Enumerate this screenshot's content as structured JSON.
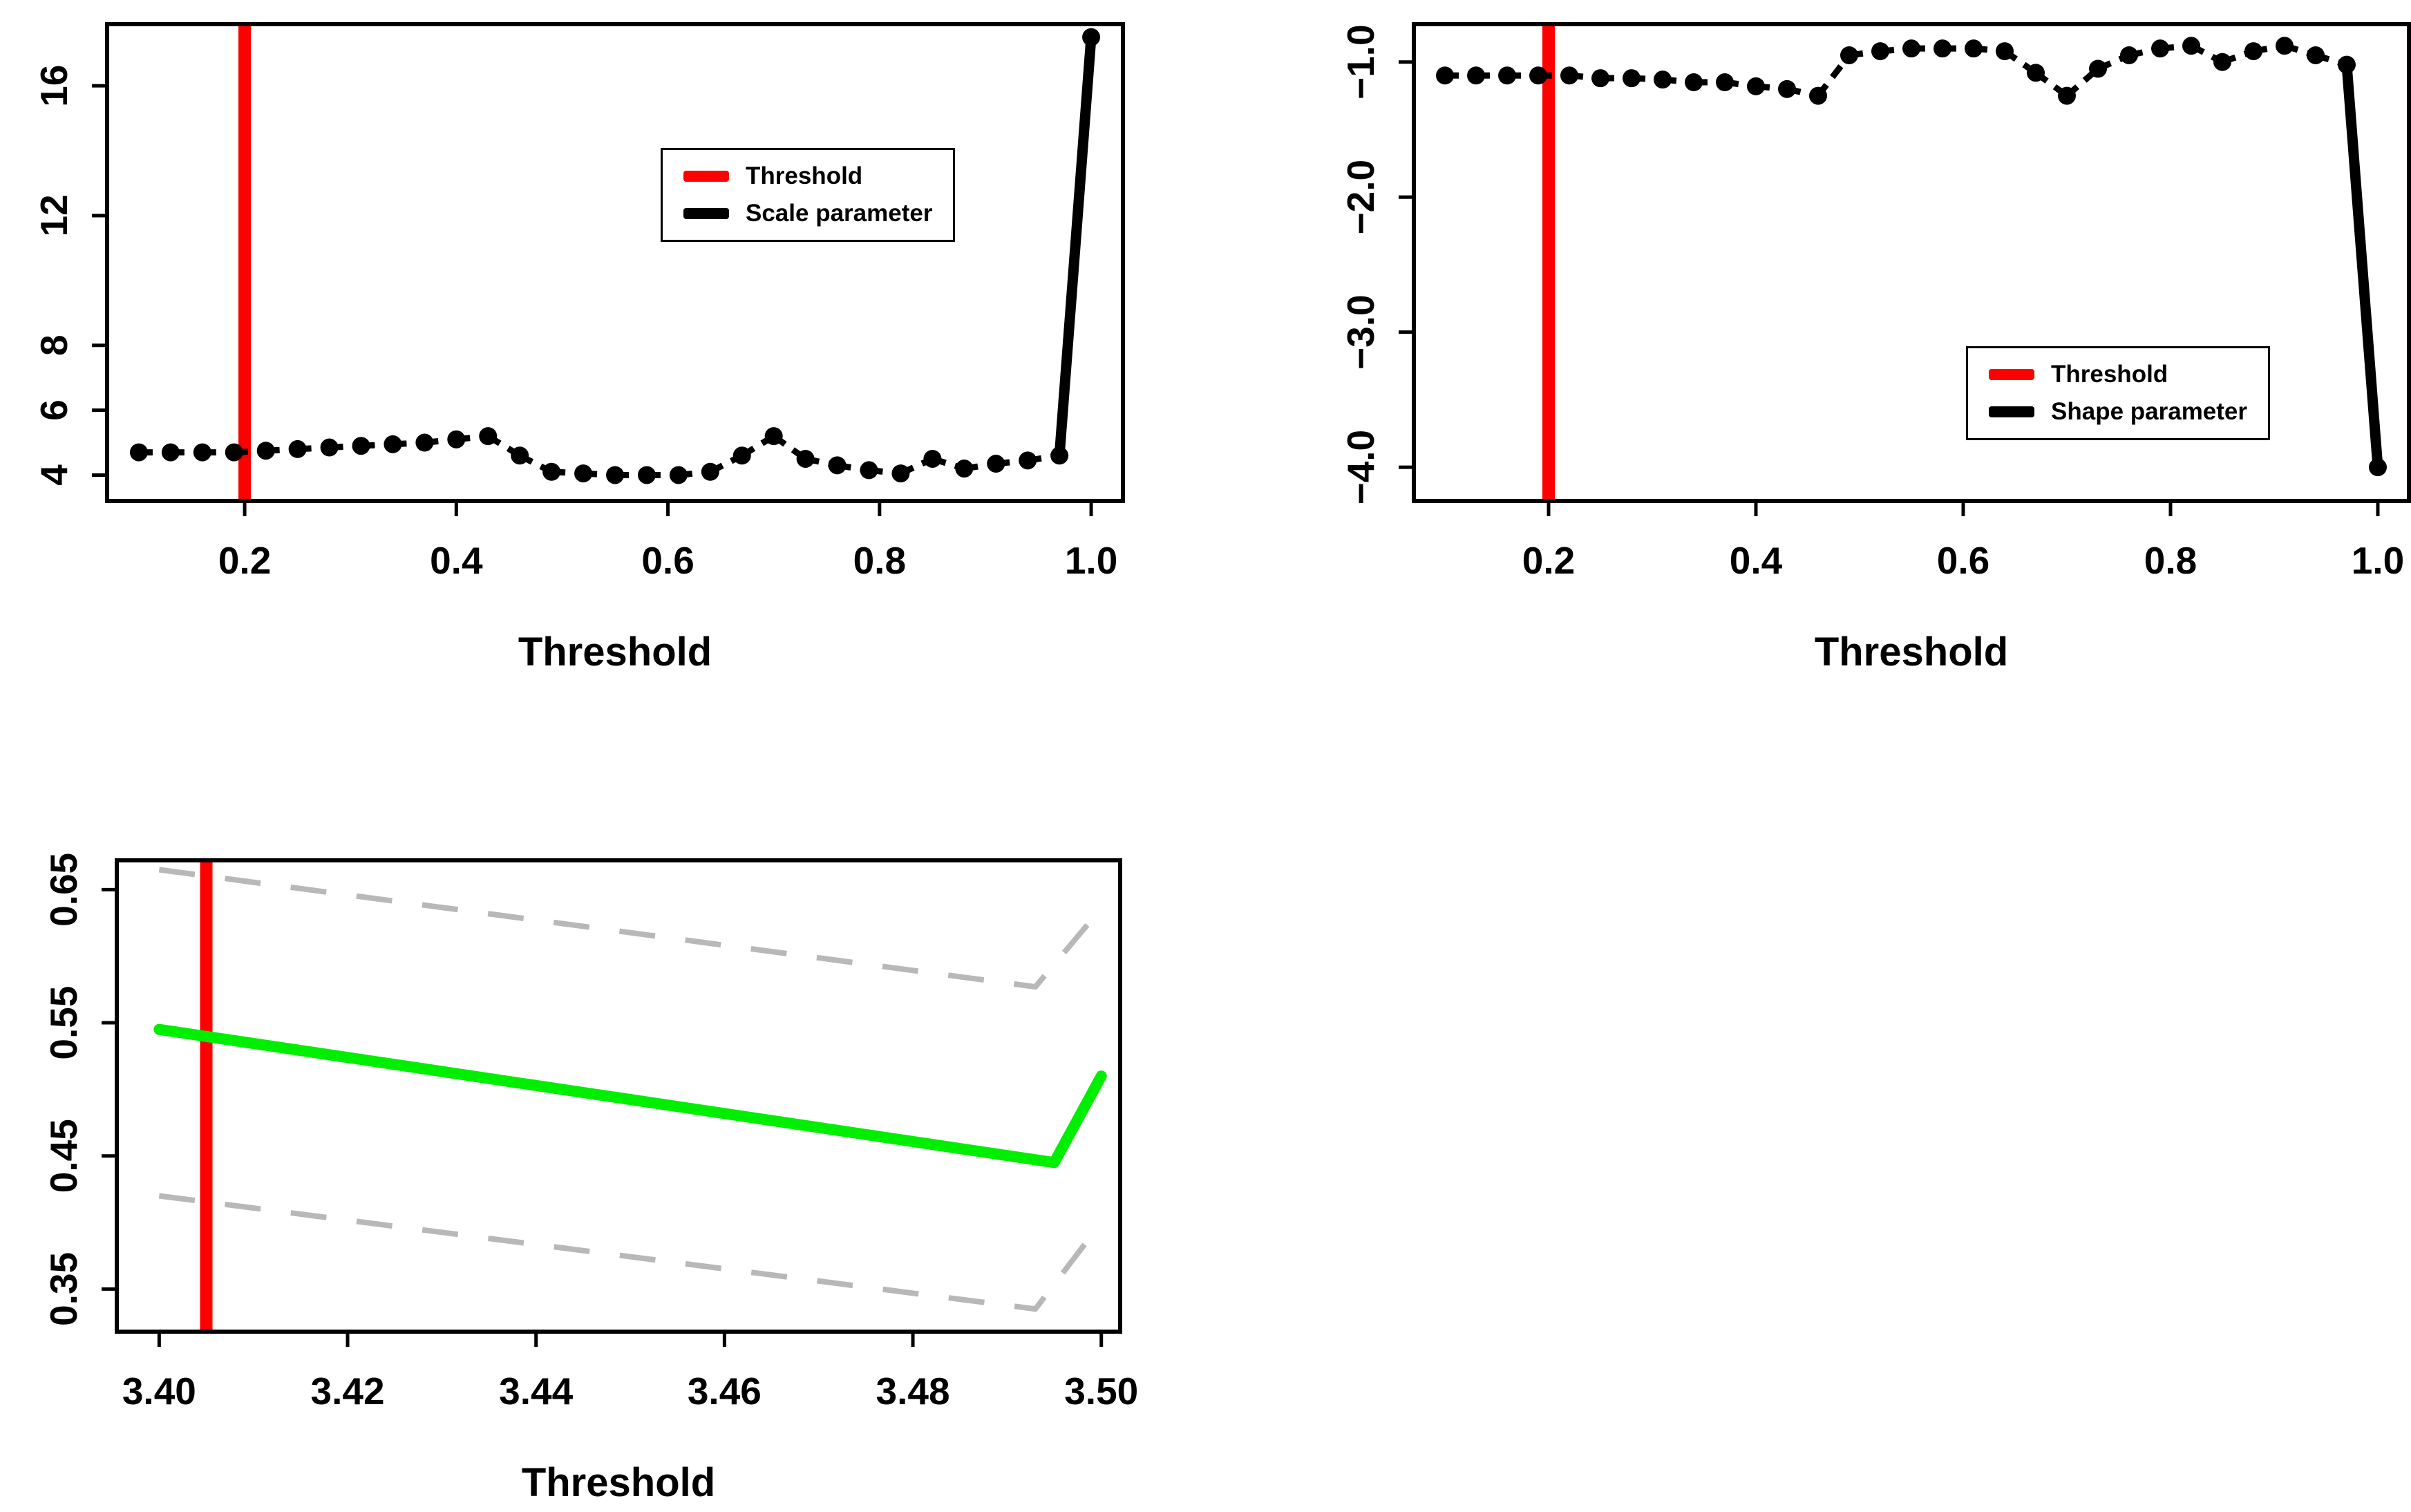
{
  "page": {
    "background": "#ffffff"
  },
  "chart_data": [
    {
      "id": "scale-parameter-stability",
      "type": "line",
      "title": "",
      "xlabel": "Threshold",
      "ylabel": "",
      "xlim": [
        0.07,
        1.03
      ],
      "ylim": [
        3.2,
        17.9
      ],
      "grid": false,
      "xticks": {
        "values": [
          0.2,
          0.4,
          0.6,
          0.8,
          1.0
        ],
        "labels": [
          "0.2",
          "0.4",
          "0.6",
          "0.8",
          "1.0"
        ]
      },
      "yticks": {
        "values": [
          4,
          6,
          8,
          12,
          16
        ],
        "labels": [
          "4",
          "6",
          "8",
          "12",
          "16"
        ]
      },
      "threshold_line": {
        "x": 0.2,
        "color": "#ff0000"
      },
      "series": [
        {
          "name": "Scale parameter",
          "color": "#000000",
          "style": "points-dashed",
          "x": [
            0.1,
            0.13,
            0.16,
            0.19,
            0.22,
            0.25,
            0.28,
            0.31,
            0.34,
            0.37,
            0.4,
            0.43,
            0.46,
            0.49,
            0.52,
            0.55,
            0.58,
            0.61,
            0.64,
            0.67,
            0.7,
            0.73,
            0.76,
            0.79,
            0.82,
            0.85,
            0.88,
            0.91,
            0.94,
            0.97,
            1.0
          ],
          "y": [
            4.7,
            4.7,
            4.7,
            4.7,
            4.75,
            4.8,
            4.85,
            4.9,
            4.95,
            5.0,
            5.1,
            5.2,
            4.6,
            4.1,
            4.05,
            4.0,
            4.0,
            4.0,
            4.1,
            4.6,
            5.2,
            4.5,
            4.3,
            4.15,
            4.05,
            4.5,
            4.2,
            4.35,
            4.45,
            4.6,
            17.5
          ]
        }
      ],
      "legend": {
        "position": "upper-right",
        "entries": [
          {
            "label": "Threshold",
            "color": "#ff0000"
          },
          {
            "label": "Scale parameter",
            "color": "#000000"
          }
        ]
      }
    },
    {
      "id": "shape-parameter-stability",
      "type": "line",
      "title": "",
      "xlabel": "Threshold",
      "ylabel": "",
      "xlim": [
        0.07,
        1.03
      ],
      "ylim": [
        -4.25,
        -0.72
      ],
      "grid": false,
      "xticks": {
        "values": [
          0.2,
          0.4,
          0.6,
          0.8,
          1.0
        ],
        "labels": [
          "0.2",
          "0.4",
          "0.6",
          "0.8",
          "1.0"
        ]
      },
      "yticks": {
        "values": [
          -4.0,
          -3.0,
          -2.0,
          -1.0
        ],
        "labels": [
          "−4.0",
          "−3.0",
          "−2.0",
          "−1.0"
        ]
      },
      "threshold_line": {
        "x": 0.2,
        "color": "#ff0000"
      },
      "series": [
        {
          "name": "Shape parameter",
          "color": "#000000",
          "style": "points-dashed",
          "x": [
            0.1,
            0.13,
            0.16,
            0.19,
            0.22,
            0.25,
            0.28,
            0.31,
            0.34,
            0.37,
            0.4,
            0.43,
            0.46,
            0.49,
            0.52,
            0.55,
            0.58,
            0.61,
            0.64,
            0.67,
            0.7,
            0.73,
            0.76,
            0.79,
            0.82,
            0.85,
            0.88,
            0.91,
            0.94,
            0.97,
            1.0
          ],
          "y": [
            -1.1,
            -1.1,
            -1.1,
            -1.1,
            -1.1,
            -1.12,
            -1.12,
            -1.13,
            -1.15,
            -1.15,
            -1.18,
            -1.2,
            -1.25,
            -0.95,
            -0.92,
            -0.9,
            -0.9,
            -0.9,
            -0.92,
            -1.08,
            -1.25,
            -1.05,
            -0.95,
            -0.9,
            -0.88,
            -1.0,
            -0.92,
            -0.88,
            -0.95,
            -1.02,
            -4.0
          ]
        }
      ],
      "legend": {
        "position": "lower-right",
        "entries": [
          {
            "label": "Threshold",
            "color": "#ff0000"
          },
          {
            "label": "Shape parameter",
            "color": "#000000"
          }
        ]
      }
    },
    {
      "id": "estimate-vs-threshold",
      "type": "line",
      "title": "",
      "xlabel": "Threshold",
      "ylabel": "",
      "xlim": [
        3.3955,
        3.502
      ],
      "ylim": [
        0.318,
        0.672
      ],
      "grid": false,
      "xticks": {
        "values": [
          3.4,
          3.42,
          3.44,
          3.46,
          3.48,
          3.5
        ],
        "labels": [
          "3.40",
          "3.42",
          "3.44",
          "3.46",
          "3.48",
          "3.50"
        ]
      },
      "yticks": {
        "values": [
          0.35,
          0.45,
          0.55,
          0.65
        ],
        "labels": [
          "0.35",
          "0.45",
          "0.55",
          "0.65"
        ]
      },
      "threshold_line": {
        "x": 3.405,
        "color": "#ff0000"
      },
      "series": [
        {
          "name": "Upper confidence bound",
          "color": "#b8b8b8",
          "style": "dashed",
          "x": [
            3.4,
            3.493,
            3.5
          ],
          "y": [
            0.665,
            0.577,
            0.636
          ]
        },
        {
          "name": "Lower confidence bound",
          "color": "#b8b8b8",
          "style": "dashed",
          "x": [
            3.4,
            3.493,
            3.5
          ],
          "y": [
            0.42,
            0.335,
            0.4
          ]
        },
        {
          "name": "Estimate",
          "color": "#00ee00",
          "style": "solid",
          "x": [
            3.4,
            3.495,
            3.5
          ],
          "y": [
            0.545,
            0.445,
            0.51
          ]
        }
      ]
    }
  ]
}
